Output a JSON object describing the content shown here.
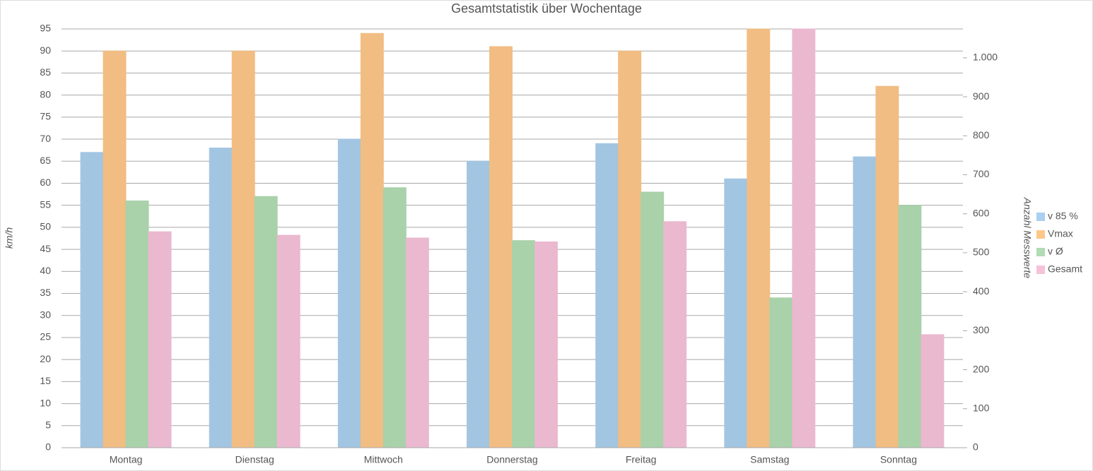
{
  "chart_data": {
    "type": "bar",
    "title": "Gesamtstatistik über Wochentage",
    "y_label": "km/h",
    "y2_label": "Anzahl Messwerte",
    "categories": [
      "Montag",
      "Dienstag",
      "Mittwoch",
      "Donnerstag",
      "Freitag",
      "Samstag",
      "Sonntag"
    ],
    "series": [
      {
        "name": "v 85 %",
        "color": "#abcfee",
        "values": [
          67,
          68,
          70,
          65,
          69,
          61,
          66
        ]
      },
      {
        "name": "Vmax",
        "color": "#fec78a",
        "values": [
          90,
          90,
          94,
          91,
          90,
          95,
          82
        ]
      },
      {
        "name": "v Ø",
        "color": "#b2dcb3",
        "values": [
          56,
          57,
          59,
          47,
          58,
          34,
          55
        ]
      },
      {
        "name": "Gesamt",
        "color": "#f6c2da",
        "axis": "y2",
        "values": [
          554,
          545,
          538,
          528,
          580,
          1074,
          290
        ]
      }
    ],
    "ylim": [
      0,
      95
    ],
    "yticks": [
      0,
      5,
      10,
      15,
      20,
      25,
      30,
      35,
      40,
      45,
      50,
      55,
      60,
      65,
      70,
      75,
      80,
      85,
      90,
      95
    ],
    "y2lim": [
      0,
      1074
    ],
    "y2ticks": [
      0,
      100,
      200,
      300,
      400,
      500,
      600,
      700,
      800,
      900,
      {
        "value": 1000,
        "label": "1.000"
      }
    ],
    "grid": true,
    "legend": "right"
  }
}
